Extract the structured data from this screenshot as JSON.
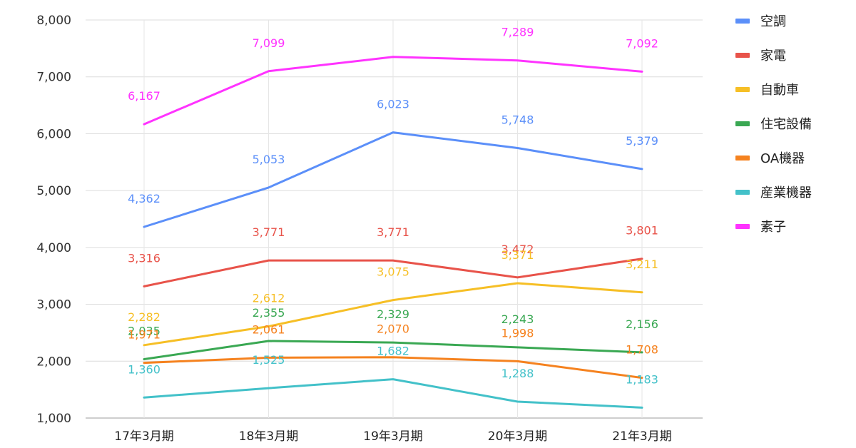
{
  "chart_data": {
    "type": "line",
    "title": "",
    "xlabel": "",
    "ylabel": "",
    "categories": [
      "17年3月期",
      "18年3月期",
      "19年3月期",
      "20年3月期",
      "21年3月期"
    ],
    "ylim": [
      1000,
      8000
    ],
    "yticks": [
      "1,000",
      "2,000",
      "3,000",
      "4,000",
      "5,000",
      "6,000",
      "7,000",
      "8,000"
    ],
    "grid": true,
    "legend_position": "right",
    "series": [
      {
        "name": "空調",
        "color": "#5b8ff9",
        "values": [
          4362,
          5053,
          6023,
          5748,
          5379
        ],
        "labels": [
          "4,362",
          "5,053",
          "6,023",
          "5,748",
          "5,379"
        ]
      },
      {
        "name": "家電",
        "color": "#e8534a",
        "values": [
          3316,
          3771,
          3771,
          3472,
          3801
        ],
        "labels": [
          "3,316",
          "3,771",
          "3,771",
          "3,472",
          "3,801"
        ]
      },
      {
        "name": "自動車",
        "color": "#f6bf26",
        "values": [
          2282,
          2612,
          3075,
          3371,
          3211
        ],
        "labels": [
          "2,282",
          "2,612",
          "3,075",
          "3,371",
          "3,211"
        ]
      },
      {
        "name": "住宅設備",
        "color": "#3aa853",
        "values": [
          2035,
          2355,
          2329,
          2243,
          2156
        ],
        "labels": [
          "2,035",
          "2,355",
          "2,329",
          "2,243",
          "2,156"
        ]
      },
      {
        "name": "OA機器",
        "color": "#f5821f",
        "values": [
          1971,
          2061,
          2070,
          1998,
          1708
        ],
        "labels": [
          "1,971",
          "2,061",
          "2,070",
          "1,998",
          "1,708"
        ]
      },
      {
        "name": "産業機器",
        "color": "#43c1c9",
        "values": [
          1360,
          1525,
          1682,
          1288,
          1183
        ],
        "labels": [
          "1,360",
          "1,525",
          "1,682",
          "1,288",
          "1,183"
        ]
      },
      {
        "name": "素子",
        "color": "#ff33ff",
        "values": [
          6167,
          7099,
          7350,
          7289,
          7092
        ],
        "labels": [
          "6,167",
          "7,099",
          "",
          "7,289",
          "7,092"
        ]
      }
    ]
  }
}
